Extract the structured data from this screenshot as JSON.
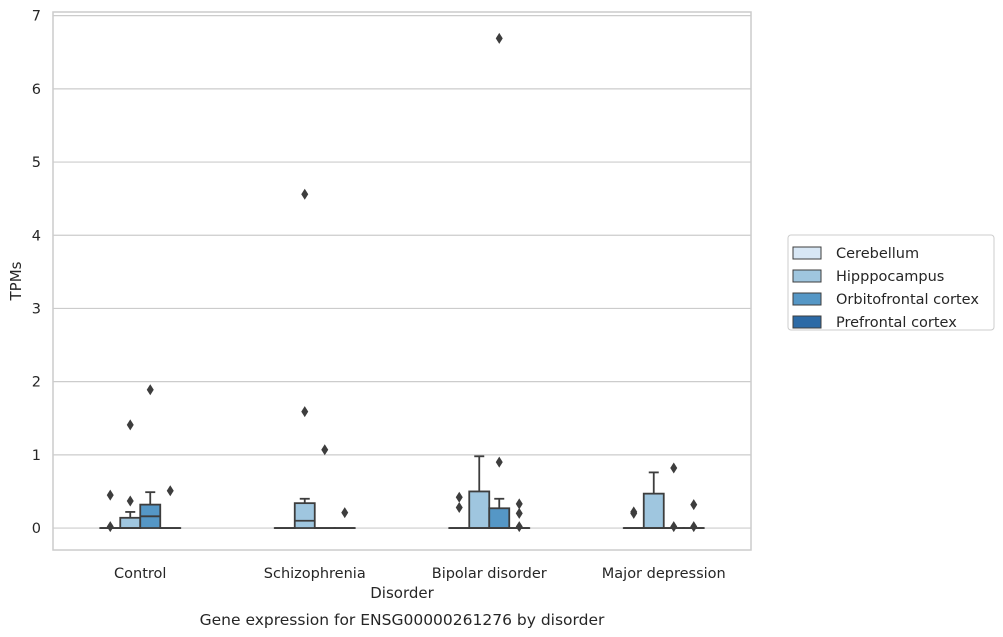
{
  "caption": "Gene expression for ENSG00000261276 by disorder",
  "chart_data": {
    "type": "box",
    "xlabel": "Disorder",
    "ylabel": "TPMs",
    "ylim": [
      -0.3,
      7.05
    ],
    "yticks": [
      0,
      1,
      2,
      3,
      4,
      5,
      6,
      7
    ],
    "grid": true,
    "legend_position": "right",
    "categories": [
      "Control",
      "Schizophrenia",
      "Bipolar disorder",
      "Major depression"
    ],
    "series": [
      {
        "name": "Cerebellum",
        "color": "#d8e7f5",
        "boxes": [
          {
            "q1": 0,
            "median": 0,
            "q3": 0,
            "whislo": 0,
            "whishi": 0,
            "fliers": [
              0.45,
              0.02
            ]
          },
          {
            "q1": 0,
            "median": 0,
            "q3": 0,
            "whislo": 0,
            "whishi": 0,
            "fliers": []
          },
          {
            "q1": 0,
            "median": 0,
            "q3": 0,
            "whislo": 0,
            "whishi": 0,
            "fliers": [
              0.42,
              0.28
            ]
          },
          {
            "q1": 0,
            "median": 0,
            "q3": 0,
            "whislo": 0,
            "whishi": 0,
            "fliers": [
              0.22,
              0.2
            ]
          }
        ]
      },
      {
        "name": "Hipppocampus",
        "color": "#9fc6df",
        "boxes": [
          {
            "q1": 0,
            "median": 0,
            "q3": 0.14,
            "whislo": 0,
            "whishi": 0.22,
            "fliers": [
              1.41,
              0.37
            ]
          },
          {
            "q1": 0,
            "median": 0.1,
            "q3": 0.34,
            "whislo": 0,
            "whishi": 0.4,
            "fliers": [
              4.56,
              1.59
            ]
          },
          {
            "q1": 0,
            "median": 0,
            "q3": 0.5,
            "whislo": 0,
            "whishi": 0.98,
            "fliers": []
          },
          {
            "q1": 0,
            "median": 0,
            "q3": 0.47,
            "whislo": 0,
            "whishi": 0.76,
            "fliers": []
          }
        ]
      },
      {
        "name": "Orbitofrontal cortex",
        "color": "#5597c6",
        "boxes": [
          {
            "q1": 0,
            "median": 0.16,
            "q3": 0.32,
            "whislo": 0,
            "whishi": 0.49,
            "fliers": [
              1.89
            ]
          },
          {
            "q1": 0,
            "median": 0,
            "q3": 0,
            "whislo": 0,
            "whishi": 0,
            "fliers": [
              1.07
            ]
          },
          {
            "q1": 0,
            "median": 0,
            "q3": 0.27,
            "whislo": 0,
            "whishi": 0.4,
            "fliers": [
              6.69,
              0.9
            ]
          },
          {
            "q1": 0,
            "median": 0,
            "q3": 0,
            "whislo": 0,
            "whishi": 0,
            "fliers": [
              0.82,
              0.02
            ]
          }
        ]
      },
      {
        "name": "Prefrontal cortex",
        "color": "#2c6aa6",
        "boxes": [
          {
            "q1": 0,
            "median": 0,
            "q3": 0,
            "whislo": 0,
            "whishi": 0,
            "fliers": [
              0.51
            ]
          },
          {
            "q1": 0,
            "median": 0,
            "q3": 0,
            "whislo": 0,
            "whishi": 0,
            "fliers": [
              0.21
            ]
          },
          {
            "q1": 0,
            "median": 0,
            "q3": 0,
            "whislo": 0,
            "whishi": 0,
            "fliers": [
              0.33,
              0.2,
              0.02
            ]
          },
          {
            "q1": 0,
            "median": 0,
            "q3": 0,
            "whislo": 0,
            "whishi": 0,
            "fliers": [
              0.32,
              0.02
            ]
          }
        ]
      }
    ]
  }
}
